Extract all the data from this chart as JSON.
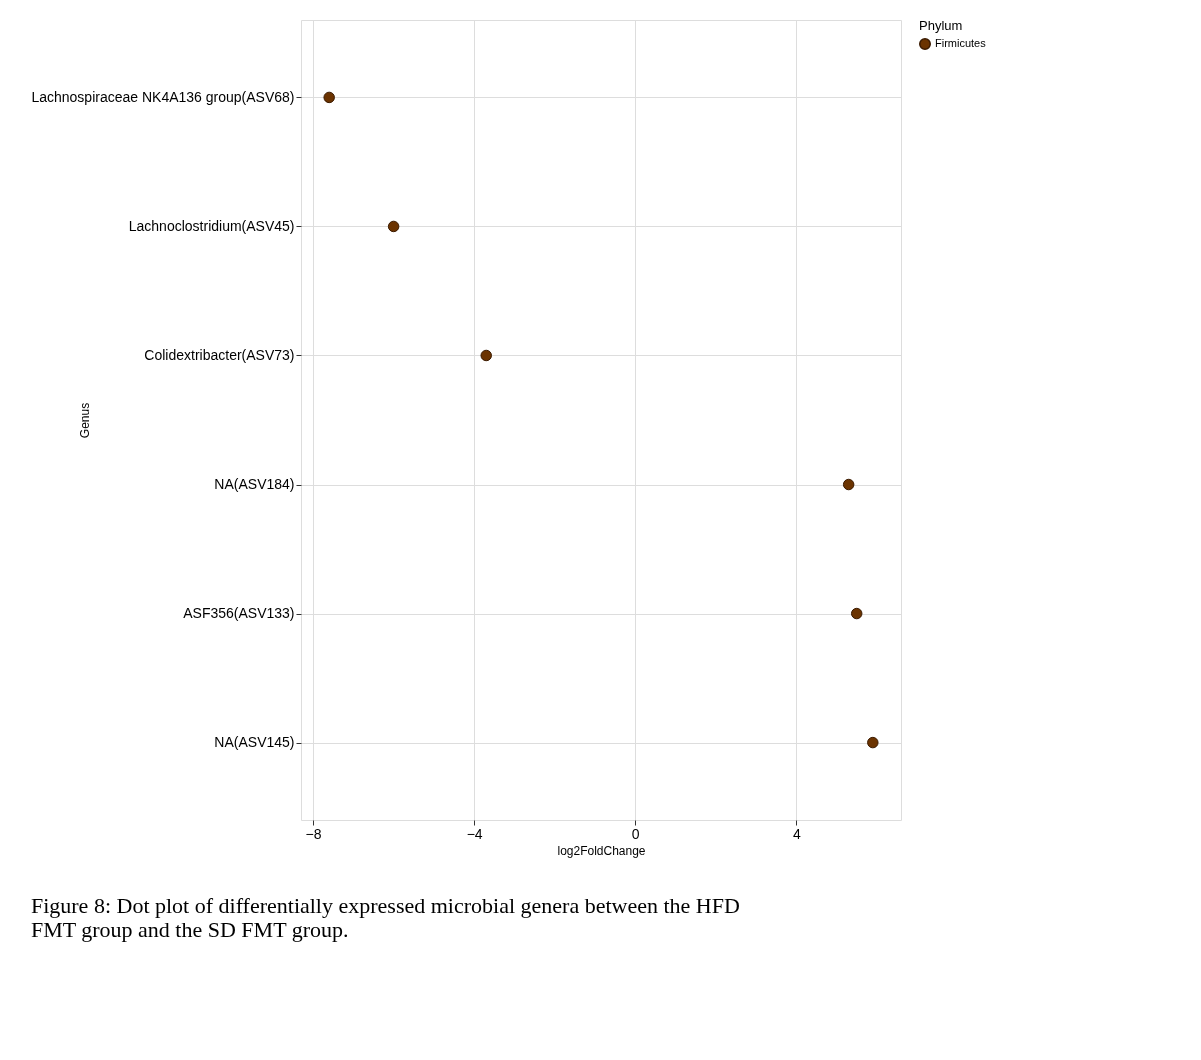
{
  "chart_data": {
    "type": "scatter",
    "categories": [
      "Lachnospiraceae NK4A136 group(ASV68)",
      "Lachnoclostridium(ASV45)",
      "Colidextribacter(ASV73)",
      "NA(ASV184)",
      "ASF356(ASV133)",
      "NA(ASV145)"
    ],
    "orientation": "horizontal",
    "series": [
      {
        "name": "Firmicutes",
        "color": "#6b3300",
        "values": [
          -7.6,
          -6.0,
          -3.7,
          5.3,
          5.5,
          5.9
        ]
      }
    ],
    "xlabel": "log2FoldChange",
    "ylabel": "Genus",
    "legend_title": "Phylum",
    "xlim": [
      -8.3,
      6.6
    ],
    "xticks": [
      -8,
      -4,
      0,
      4
    ],
    "grid": true,
    "legend": "right",
    "marker": "circle",
    "annotations": [
      "Figure 8: Dot plot of differentially expressed microbial genera between the HFD FMT group and the SD FMT group."
    ]
  }
}
